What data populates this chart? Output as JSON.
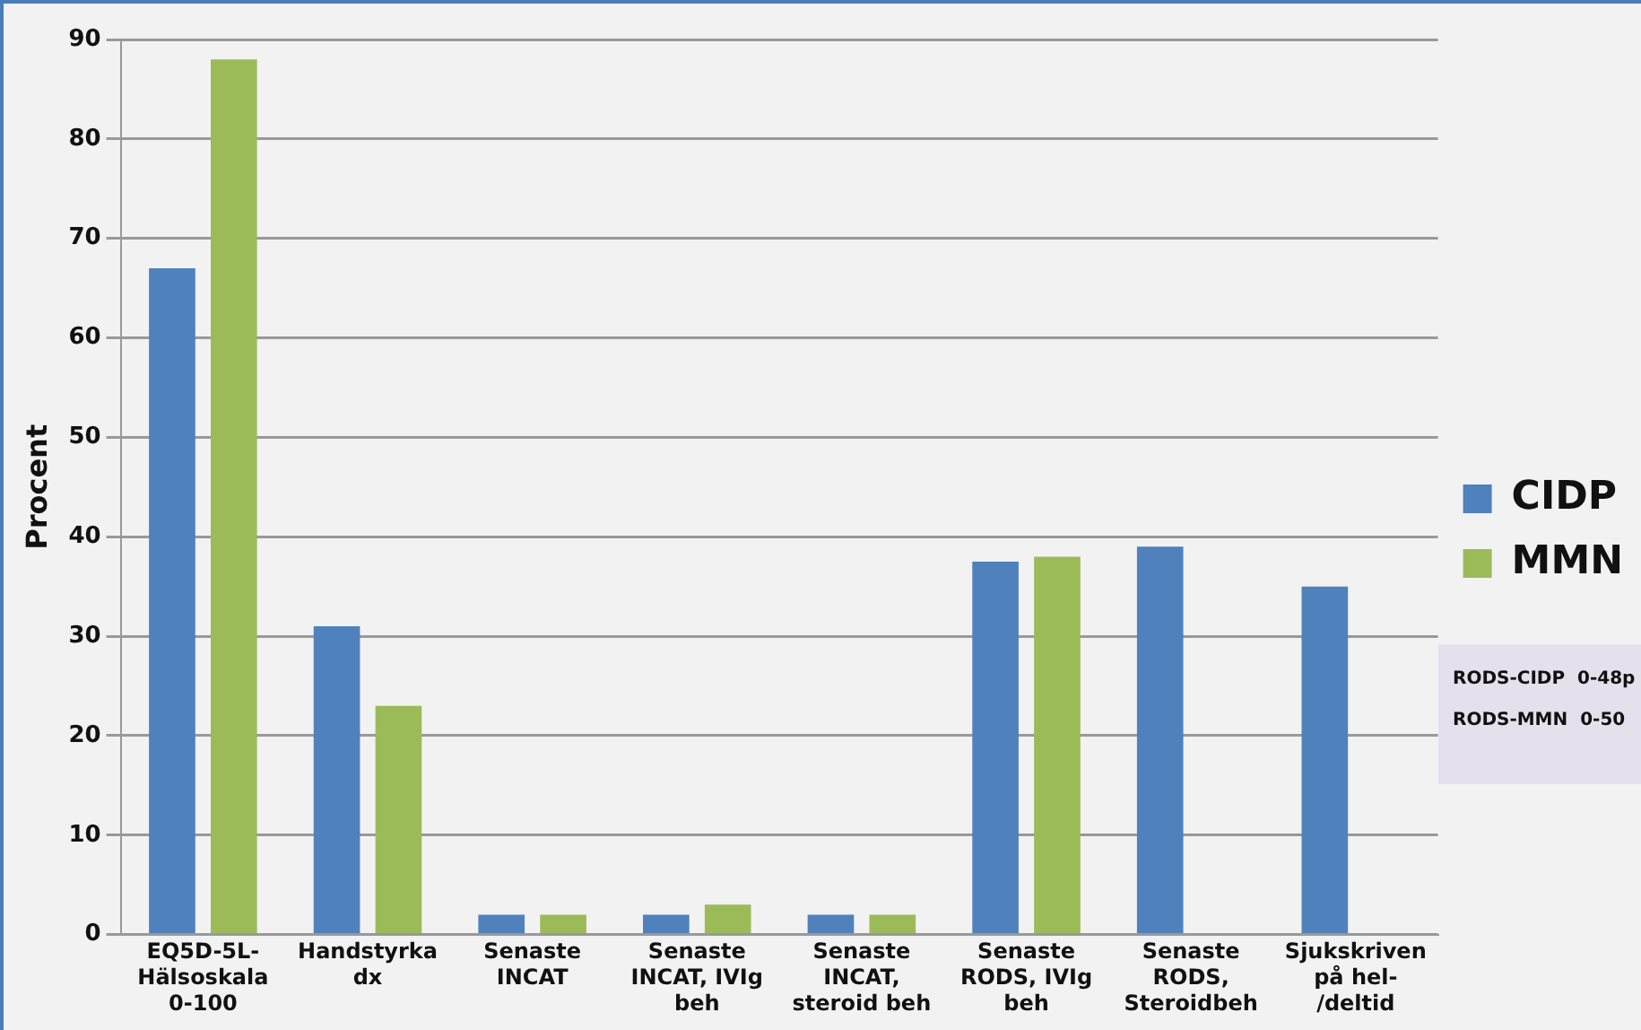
{
  "chart_data": {
    "type": "bar",
    "ylabel": "Procent",
    "categories": [
      "EQ5D-5L-Hälsoskala 0-100",
      "Handstyrka dx",
      "Senaste INCAT",
      "Senaste INCAT, IVIg beh",
      "Senaste INCAT, steroid beh",
      "Senaste RODS, IVIg beh",
      "Senaste RODS, Steroidbeh",
      "Sjukskriven på hel-/deltid"
    ],
    "series": [
      {
        "name": "CIDP",
        "color": "#4f81bd",
        "values": [
          67,
          31,
          2,
          2,
          2,
          37.5,
          39,
          35
        ]
      },
      {
        "name": "MMN",
        "color": "#9bbb59",
        "values": [
          88,
          23,
          2,
          3,
          2,
          38,
          null,
          null
        ]
      }
    ],
    "ylim": [
      0,
      90
    ],
    "yticks": [
      0,
      10,
      20,
      30,
      40,
      50,
      60,
      70,
      80,
      90
    ],
    "grid": "y",
    "legend": "right",
    "annotations": [
      "RODS-CIDP  0-48p",
      "RODS-MMN  0-50"
    ]
  }
}
